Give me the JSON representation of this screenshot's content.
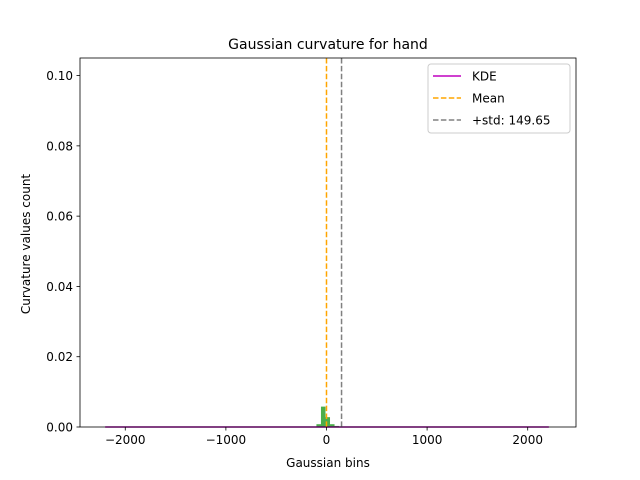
{
  "chart_data": {
    "type": "bar",
    "title": "Gaussian curvature for hand",
    "xlabel": "Gaussian bins",
    "ylabel": "Curvature values count",
    "xlim": [
      -2450,
      2480
    ],
    "ylim": [
      0,
      0.105
    ],
    "xticks": [
      -2000,
      -1000,
      0,
      1000,
      2000
    ],
    "xtick_labels": [
      "−2000",
      "−1000",
      "0",
      "1000",
      "2000"
    ],
    "yticks": [
      0.0,
      0.02,
      0.04,
      0.06,
      0.08,
      0.1
    ],
    "ytick_labels": [
      "0.00",
      "0.02",
      "0.04",
      "0.06",
      "0.08",
      "0.10"
    ],
    "grid": false,
    "legend_position": "upper right",
    "histogram": {
      "color": "#2ca02c",
      "bin_width": 45,
      "bins": [
        {
          "x0": -100,
          "x1": -55,
          "value": 0.0008
        },
        {
          "x0": -55,
          "x1": -10,
          "value": 0.0058
        },
        {
          "x0": -10,
          "x1": 35,
          "value": 0.0028
        },
        {
          "x0": 35,
          "x1": 80,
          "value": 0.0008
        },
        {
          "x0": 80,
          "x1": 125,
          "value": 0.0003
        }
      ]
    },
    "series": [
      {
        "name": "KDE",
        "type": "line",
        "color": "#bf00bf",
        "style": "solid",
        "x": [
          -2200,
          -1000,
          0,
          1000,
          2210
        ],
        "y": [
          0,
          0,
          0,
          0,
          0
        ]
      },
      {
        "name": "Mean",
        "type": "vline",
        "color": "#ffa500",
        "style": "dashed",
        "x": 0
      },
      {
        "name": "+std: 149.65",
        "type": "vline",
        "color": "#808080",
        "style": "dashed",
        "x": 149.65
      }
    ]
  }
}
